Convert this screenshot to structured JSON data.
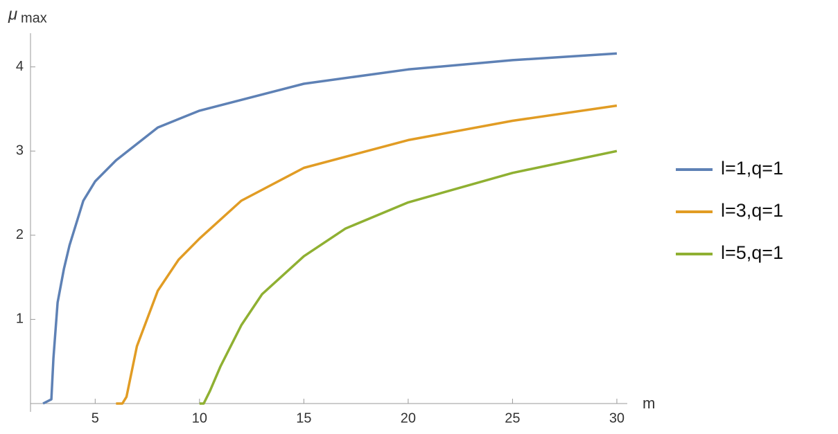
{
  "chart_data": {
    "type": "line",
    "y_label": {
      "symbol": "μ",
      "subscript": "max"
    },
    "x_label": "m",
    "xlim": [
      1.9,
      30.5
    ],
    "ylim": [
      0,
      4.4
    ],
    "xticks": [
      5,
      10,
      15,
      20,
      25,
      30
    ],
    "yticks": [
      1,
      2,
      3,
      4
    ],
    "legend": "right",
    "series": [
      {
        "name": "l=1,q=1",
        "color": "#5e81b5",
        "x": [
          2.5,
          2.9,
          3.0,
          3.2,
          3.5,
          3.77,
          4.43,
          5,
          6,
          8,
          10,
          15,
          20,
          25,
          30
        ],
        "values": [
          0,
          0.05,
          0.54,
          1.2,
          1.6,
          1.88,
          2.41,
          2.64,
          2.89,
          3.28,
          3.48,
          3.8,
          3.97,
          4.08,
          4.16
        ]
      },
      {
        "name": "l=3,q=1",
        "color": "#e19c24",
        "x": [
          6.0,
          6.3,
          6.5,
          7,
          8,
          9,
          10,
          12,
          15,
          20,
          25,
          30
        ],
        "values": [
          0,
          0,
          0.08,
          0.68,
          1.34,
          1.71,
          1.96,
          2.41,
          2.8,
          3.13,
          3.36,
          3.54
        ]
      },
      {
        "name": "l=5,q=1",
        "color": "#8fb032",
        "x": [
          10.0,
          10.2,
          10.5,
          11,
          12,
          13,
          15,
          17,
          20,
          25,
          30
        ],
        "values": [
          0,
          0,
          0.15,
          0.44,
          0.93,
          1.3,
          1.75,
          2.08,
          2.39,
          2.74,
          3.0
        ]
      }
    ]
  }
}
